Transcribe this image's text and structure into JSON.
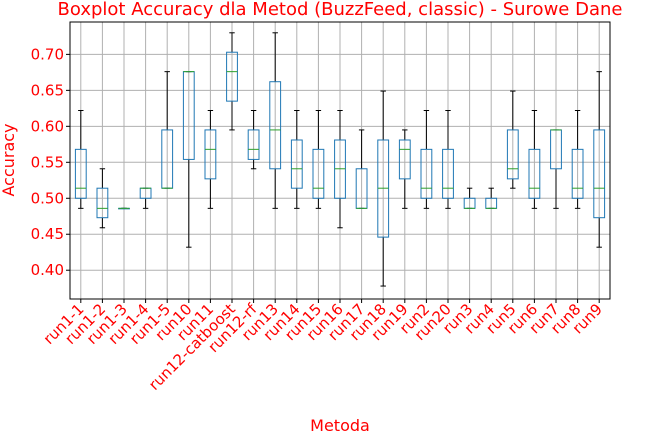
{
  "chart_data": {
    "type": "boxplot",
    "title": "Boxplot Accuracy dla Metod (BuzzFeed, classic) - Surowe Dane",
    "xlabel": "Metoda",
    "ylabel": "Accuracy",
    "ylim": [
      0.36,
      0.745
    ],
    "yticks": [
      0.4,
      0.45,
      0.5,
      0.55,
      0.6,
      0.65,
      0.7
    ],
    "ytick_labels": [
      "0.40",
      "0.45",
      "0.50",
      "0.55",
      "0.60",
      "0.65",
      "0.70"
    ],
    "grid": true,
    "colors": {
      "box": "#1f77b4",
      "median": "#2ca02c",
      "whisker": "#000000",
      "text": "#ff0000",
      "grid": "#b0b0b0"
    },
    "categories": [
      "run1-1",
      "run1-2",
      "run1-3",
      "run1-4",
      "run1-5",
      "run10",
      "run11",
      "run12-catboost",
      "run12-rf",
      "run13",
      "run14",
      "run15",
      "run16",
      "run17",
      "run18",
      "run19",
      "run2",
      "run20",
      "run3",
      "run4",
      "run5",
      "run6",
      "run7",
      "run8",
      "run9"
    ],
    "boxes": [
      {
        "whislo": 0.486,
        "q1": 0.5,
        "med": 0.514,
        "q3": 0.568,
        "whishi": 0.622
      },
      {
        "whislo": 0.459,
        "q1": 0.473,
        "med": 0.486,
        "q3": 0.514,
        "whishi": 0.541
      },
      {
        "whislo": 0.486,
        "q1": 0.486,
        "med": 0.486,
        "q3": 0.486,
        "whishi": 0.486
      },
      {
        "whislo": 0.486,
        "q1": 0.5,
        "med": 0.514,
        "q3": 0.514,
        "whishi": 0.514
      },
      {
        "whislo": 0.514,
        "q1": 0.514,
        "med": 0.514,
        "q3": 0.595,
        "whishi": 0.676
      },
      {
        "whislo": 0.432,
        "q1": 0.554,
        "med": 0.676,
        "q3": 0.676,
        "whishi": 0.676
      },
      {
        "whislo": 0.486,
        "q1": 0.527,
        "med": 0.568,
        "q3": 0.595,
        "whishi": 0.622
      },
      {
        "whislo": 0.595,
        "q1": 0.635,
        "med": 0.676,
        "q3": 0.703,
        "whishi": 0.73
      },
      {
        "whislo": 0.541,
        "q1": 0.554,
        "med": 0.568,
        "q3": 0.595,
        "whishi": 0.622
      },
      {
        "whislo": 0.486,
        "q1": 0.541,
        "med": 0.595,
        "q3": 0.662,
        "whishi": 0.73
      },
      {
        "whislo": 0.486,
        "q1": 0.514,
        "med": 0.541,
        "q3": 0.581,
        "whishi": 0.622
      },
      {
        "whislo": 0.486,
        "q1": 0.5,
        "med": 0.514,
        "q3": 0.568,
        "whishi": 0.622
      },
      {
        "whislo": 0.459,
        "q1": 0.5,
        "med": 0.541,
        "q3": 0.581,
        "whishi": 0.622
      },
      {
        "whislo": 0.486,
        "q1": 0.486,
        "med": 0.486,
        "q3": 0.541,
        "whishi": 0.595
      },
      {
        "whislo": 0.378,
        "q1": 0.446,
        "med": 0.514,
        "q3": 0.581,
        "whishi": 0.649
      },
      {
        "whislo": 0.486,
        "q1": 0.527,
        "med": 0.568,
        "q3": 0.581,
        "whishi": 0.595
      },
      {
        "whislo": 0.486,
        "q1": 0.5,
        "med": 0.514,
        "q3": 0.568,
        "whishi": 0.622
      },
      {
        "whislo": 0.486,
        "q1": 0.5,
        "med": 0.514,
        "q3": 0.568,
        "whishi": 0.622
      },
      {
        "whislo": 0.486,
        "q1": 0.486,
        "med": 0.486,
        "q3": 0.5,
        "whishi": 0.514
      },
      {
        "whislo": 0.486,
        "q1": 0.486,
        "med": 0.486,
        "q3": 0.5,
        "whishi": 0.514
      },
      {
        "whislo": 0.514,
        "q1": 0.527,
        "med": 0.541,
        "q3": 0.595,
        "whishi": 0.649
      },
      {
        "whislo": 0.486,
        "q1": 0.5,
        "med": 0.514,
        "q3": 0.568,
        "whishi": 0.622
      },
      {
        "whislo": 0.486,
        "q1": 0.541,
        "med": 0.595,
        "q3": 0.595,
        "whishi": 0.595
      },
      {
        "whislo": 0.486,
        "q1": 0.5,
        "med": 0.514,
        "q3": 0.568,
        "whishi": 0.622
      },
      {
        "whislo": 0.432,
        "q1": 0.473,
        "med": 0.514,
        "q3": 0.595,
        "whishi": 0.676
      }
    ]
  }
}
